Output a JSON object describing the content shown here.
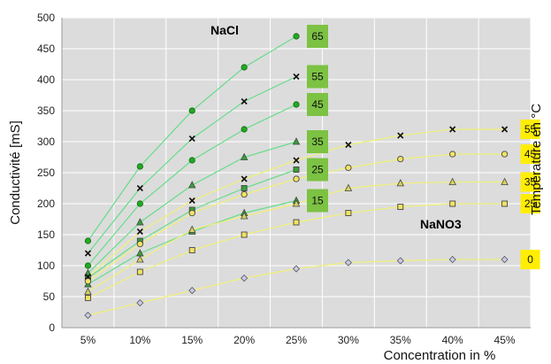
{
  "chart_data": {
    "type": "scatter",
    "xlabel": "Concentration in %",
    "ylabel": "Conductivité [mS]",
    "right_label": "Température en °C",
    "x_categories": [
      "5%",
      "10%",
      "15%",
      "20%",
      "25%",
      "30%",
      "35%",
      "40%",
      "45%"
    ],
    "y_ticks": [
      0,
      50,
      100,
      150,
      200,
      250,
      300,
      350,
      400,
      450,
      500
    ],
    "ylim": [
      0,
      500
    ],
    "grid": true,
    "background_color": "#dcdcdc",
    "groups": [
      {
        "name": "NaCl",
        "line_color": "#66dd88",
        "label_bg": "#7cc243",
        "series": [
          {
            "label": "65",
            "marker": "dot",
            "x": [
              "5%",
              "10%",
              "15%",
              "20%",
              "25%"
            ],
            "y": [
              140,
              260,
              350,
              420,
              470
            ]
          },
          {
            "label": "55",
            "marker": "x",
            "x": [
              "5%",
              "10%",
              "15%",
              "20%",
              "25%"
            ],
            "y": [
              120,
              225,
              305,
              365,
              405
            ]
          },
          {
            "label": "45",
            "marker": "dot",
            "x": [
              "5%",
              "10%",
              "15%",
              "20%",
              "25%"
            ],
            "y": [
              100,
              200,
              270,
              320,
              360
            ]
          },
          {
            "label": "35",
            "marker": "triangle",
            "x": [
              "5%",
              "10%",
              "15%",
              "20%",
              "25%"
            ],
            "y": [
              88,
              170,
              230,
              275,
              300
            ]
          },
          {
            "label": "25",
            "marker": "square",
            "x": [
              "5%",
              "10%",
              "15%",
              "20%",
              "25%"
            ],
            "y": [
              80,
              140,
              190,
              225,
              255
            ]
          },
          {
            "label": "15",
            "marker": "triangle",
            "x": [
              "5%",
              "10%",
              "15%",
              "20%",
              "25%"
            ],
            "y": [
              70,
              120,
              155,
              185,
              205
            ]
          }
        ]
      },
      {
        "name": "NaNO3",
        "line_color": "#f0f07a",
        "label_bg": "#ffee00",
        "series": [
          {
            "label": "55",
            "marker": "x",
            "x": [
              "5%",
              "10%",
              "15%",
              "20%",
              "25%",
              "30%",
              "35%",
              "40%",
              "45%"
            ],
            "y": [
              82,
              155,
              205,
              240,
              270,
              295,
              310,
              320,
              320
            ]
          },
          {
            "label": "45",
            "marker": "circle",
            "x": [
              "5%",
              "10%",
              "15%",
              "20%",
              "25%",
              "30%",
              "35%",
              "40%",
              "45%"
            ],
            "y": [
              75,
              135,
              185,
              215,
              240,
              258,
              272,
              280,
              280
            ]
          },
          {
            "label": "35",
            "marker": "triangle",
            "x": [
              "5%",
              "10%",
              "15%",
              "20%",
              "25%",
              "30%",
              "35%",
              "40%",
              "45%"
            ],
            "y": [
              58,
              110,
              158,
              180,
              200,
              225,
              233,
              235,
              235
            ]
          },
          {
            "label": "25",
            "marker": "square",
            "x": [
              "5%",
              "10%",
              "15%",
              "20%",
              "25%",
              "30%",
              "35%",
              "40%",
              "45%"
            ],
            "y": [
              48,
              90,
              125,
              150,
              170,
              185,
              195,
              200,
              200
            ]
          },
          {
            "label": "0",
            "marker": "diamond",
            "x": [
              "5%",
              "10%",
              "15%",
              "20%",
              "25%",
              "30%",
              "35%",
              "40%",
              "45%"
            ],
            "y": [
              20,
              40,
              60,
              80,
              95,
              105,
              108,
              110,
              110
            ]
          }
        ]
      }
    ]
  }
}
